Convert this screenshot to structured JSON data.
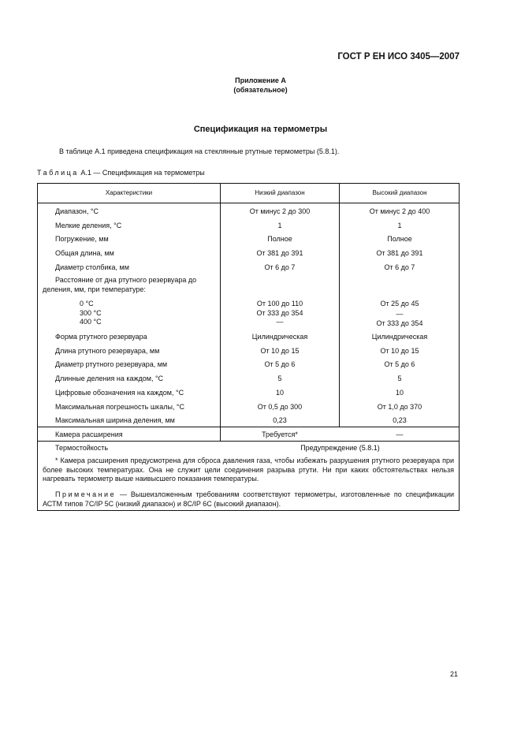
{
  "header": {
    "standard": "ГОСТ Р ЕН ИСО 3405—2007"
  },
  "appendix": {
    "title": "Приложение А",
    "type": "(обязательное)"
  },
  "section_title": "Спецификация на термометры",
  "intro": "В таблице А.1 приведена спецификация на стеклянные ртутные термометры (5.8.1).",
  "table": {
    "caption_prefix": "Таблица",
    "caption": "А.1 — Спецификация на термометры",
    "columns": [
      "Характеристики",
      "Низкий диапазон",
      "Высокий диапазон"
    ],
    "rows": [
      [
        "Диапазон, °С",
        "От минус 2 до 300",
        "От минус 2 до 400"
      ],
      [
        "Мелкие деления, °С",
        "1",
        "1"
      ],
      [
        "Погружение, мм",
        "Полное",
        "Полное"
      ],
      [
        "Общая длина, мм",
        "От 381 до 391",
        "От 381 до 391"
      ],
      [
        "Диаметр столбика, мм",
        "От 6 до 7",
        "От 6 до 7"
      ]
    ],
    "distance": {
      "label_line1": "Расстояние от дна ртутного резервуара до",
      "label_line2": "деления, мм, при температуре:",
      "temps": [
        "0 °С",
        "300 °С",
        "400 °С"
      ],
      "low": [
        "От 100 до 110",
        "От 333 до 354",
        "—"
      ],
      "high": [
        "От 25 до 45",
        "—",
        "От 333 до 354"
      ]
    },
    "rows2": [
      [
        "Форма ртутного резервуара",
        "Цилиндрическая",
        "Цилиндрическая"
      ],
      [
        "Длина ртутного резервуара, мм",
        "От 10 до 15",
        "От 10 до 15"
      ],
      [
        "Диаметр ртутного резервуара, мм",
        "От 5 до 6",
        "От 5 до 6"
      ],
      [
        "Длинные деления на каждом, °С",
        "5",
        "5"
      ],
      [
        "Цифровые обозначения на каждом, °С",
        "10",
        "10"
      ],
      [
        "Максимальная погрешность шкалы, °С",
        "От 0,5 до 300",
        "От 1,0 до 370"
      ],
      [
        "Максимальная ширина деления, мм",
        "0,23",
        "0,23"
      ],
      [
        "Камера расширения",
        "Требуется*",
        "—"
      ]
    ],
    "thermal": {
      "label": "Термостойкость",
      "value": "Предупреждение (5.8.1)"
    },
    "footnote": "* Камера расширения предусмотрена для сброса давления газа, чтобы избежать разрушения ртутного резервуара при более высоких температурах. Она не служит цели соединения разрыва ртути. Ни при каких обстоятельствах нельзя нагревать термометр выше наивысшего показания температуры.",
    "note_prefix": "Примечание",
    "note": " — Вышеизложенным требованиям соответствуют термометры, изготовленные по спецификации АСТМ типов 7С/IP 5C (низкий диапазон) и 8С/IP 6C (высокий диапазон)."
  },
  "page_number": "21"
}
